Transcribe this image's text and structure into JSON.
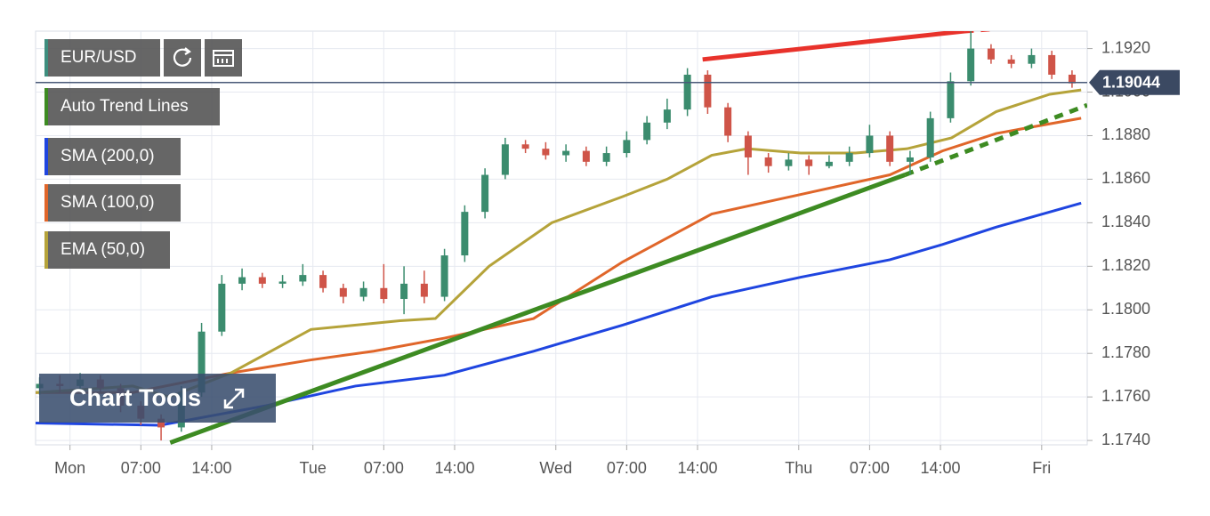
{
  "chart_data": {
    "type": "candlestick",
    "symbol": "EUR/USD",
    "xlim": [
      -3.4,
      100.5
    ],
    "ylim": [
      1.1738,
      1.1928
    ],
    "xticks": [
      {
        "value": 0,
        "label": "Mon"
      },
      {
        "value": 7,
        "label": "07:00"
      },
      {
        "value": 14,
        "label": "14:00"
      },
      {
        "value": 24,
        "label": "Tue"
      },
      {
        "value": 31,
        "label": "07:00"
      },
      {
        "value": 38,
        "label": "14:00"
      },
      {
        "value": 48,
        "label": "Wed"
      },
      {
        "value": 55,
        "label": "07:00"
      },
      {
        "value": 62,
        "label": "14:00"
      },
      {
        "value": 72,
        "label": "Thu"
      },
      {
        "value": 79,
        "label": "07:00"
      },
      {
        "value": 86,
        "label": "14:00"
      },
      {
        "value": 96,
        "label": "Fri"
      }
    ],
    "yticks": [
      {
        "value": 1.174,
        "label": "1.1740"
      },
      {
        "value": 1.176,
        "label": "1.1760"
      },
      {
        "value": 1.178,
        "label": "1.1780"
      },
      {
        "value": 1.18,
        "label": "1.1800"
      },
      {
        "value": 1.182,
        "label": "1.1820"
      },
      {
        "value": 1.184,
        "label": "1.1840"
      },
      {
        "value": 1.186,
        "label": "1.1860"
      },
      {
        "value": 1.188,
        "label": "1.1880"
      },
      {
        "value": 1.19,
        "label": "1.1900"
      },
      {
        "value": 1.192,
        "label": "1.1920"
      }
    ],
    "grid": true,
    "up_color": "#3b8c6e",
    "down_color": "#cf5448",
    "x": [
      -3,
      -1,
      1,
      3,
      5,
      7,
      9,
      11,
      13,
      15,
      17,
      19,
      21,
      23,
      25,
      27,
      29,
      31,
      33,
      35,
      37,
      39,
      41,
      43,
      45,
      47,
      49,
      51,
      53,
      55,
      57,
      59,
      61,
      63,
      65,
      67,
      69,
      71,
      73,
      75,
      77,
      79,
      81,
      83,
      85,
      87,
      89,
      91,
      93,
      95,
      97,
      99
    ],
    "open": [
      1.1764,
      1.1766,
      1.1765,
      1.1768,
      1.1764,
      1.1756,
      1.175,
      1.1746,
      1.1762,
      1.179,
      1.1812,
      1.1815,
      1.1812,
      1.1813,
      1.1816,
      1.181,
      1.1806,
      1.181,
      1.1805,
      1.1812,
      1.1806,
      1.1825,
      1.1845,
      1.1862,
      1.1876,
      1.1874,
      1.1871,
      1.1873,
      1.1868,
      1.1872,
      1.1878,
      1.1886,
      1.1892,
      1.1908,
      1.1893,
      1.188,
      1.187,
      1.1866,
      1.1869,
      1.1866,
      1.1868,
      1.1872,
      1.188,
      1.1868,
      1.187,
      1.1888,
      1.1905,
      1.192,
      1.1915,
      1.1913,
      1.1917,
      1.1908
    ],
    "high": [
      1.1769,
      1.177,
      1.1771,
      1.177,
      1.1766,
      1.1758,
      1.1752,
      1.1765,
      1.1794,
      1.1816,
      1.1819,
      1.1817,
      1.1816,
      1.1821,
      1.1818,
      1.1812,
      1.1813,
      1.1821,
      1.182,
      1.1818,
      1.1828,
      1.1848,
      1.1865,
      1.1879,
      1.1878,
      1.1877,
      1.1876,
      1.1875,
      1.1875,
      1.1882,
      1.1889,
      1.1897,
      1.1911,
      1.191,
      1.1895,
      1.1882,
      1.1872,
      1.1872,
      1.1871,
      1.1871,
      1.1875,
      1.1885,
      1.1882,
      1.1873,
      1.1891,
      1.1909,
      1.1928,
      1.1922,
      1.1917,
      1.192,
      1.1919,
      1.191
    ],
    "low": [
      1.1761,
      1.1762,
      1.1763,
      1.1762,
      1.1753,
      1.1747,
      1.174,
      1.1744,
      1.176,
      1.1788,
      1.1809,
      1.181,
      1.181,
      1.1811,
      1.1808,
      1.1803,
      1.1804,
      1.1803,
      1.1798,
      1.1803,
      1.1804,
      1.1822,
      1.1842,
      1.186,
      1.1872,
      1.1869,
      1.1868,
      1.1866,
      1.1866,
      1.187,
      1.1876,
      1.1883,
      1.1889,
      1.189,
      1.1877,
      1.1862,
      1.1863,
      1.1864,
      1.1862,
      1.1865,
      1.1866,
      1.187,
      1.1866,
      1.1862,
      1.1868,
      1.1886,
      1.1903,
      1.1913,
      1.1911,
      1.1911,
      1.1906,
      1.1902
    ],
    "close": [
      1.1766,
      1.1765,
      1.1768,
      1.1764,
      1.1756,
      1.175,
      1.1746,
      1.1762,
      1.179,
      1.1812,
      1.1815,
      1.1812,
      1.1813,
      1.1816,
      1.181,
      1.1806,
      1.181,
      1.1805,
      1.1812,
      1.1806,
      1.1825,
      1.1845,
      1.1862,
      1.1876,
      1.1874,
      1.1871,
      1.1873,
      1.1868,
      1.1872,
      1.1878,
      1.1886,
      1.1892,
      1.1908,
      1.1893,
      1.188,
      1.187,
      1.1866,
      1.1869,
      1.1866,
      1.1868,
      1.1872,
      1.188,
      1.1868,
      1.187,
      1.1888,
      1.1905,
      1.192,
      1.1915,
      1.1913,
      1.1917,
      1.1908,
      1.1904
    ],
    "series": [
      {
        "name": "SMA (200,0)",
        "color": "#1f45e0",
        "x": [
          -3.4,
          8.9,
          19.4,
          28.2,
          37.0,
          45.8,
          54.6,
          63.4,
          72.2,
          81.0,
          86.2,
          91.5,
          99.9
        ],
        "values": [
          1.1748,
          1.1747,
          1.1756,
          1.1765,
          1.177,
          1.1781,
          1.1793,
          1.1806,
          1.1815,
          1.1823,
          1.183,
          1.1838,
          1.1849
        ]
      },
      {
        "name": "SMA (100,0)",
        "color": "#e0662a",
        "x": [
          -3.4,
          6.2,
          15.9,
          23.8,
          30.0,
          37.0,
          45.8,
          54.6,
          63.4,
          72.2,
          81.0,
          86.2,
          91.5,
          99.9
        ],
        "values": [
          1.1762,
          1.1762,
          1.1771,
          1.1777,
          1.1781,
          1.1787,
          1.1796,
          1.1822,
          1.1844,
          1.1853,
          1.1862,
          1.1873,
          1.1881,
          1.1888
        ]
      },
      {
        "name": "EMA (50,0)",
        "color": "#b5a33a",
        "x": [
          -3.4,
          6.2,
          9.8,
          15.9,
          23.8,
          32.6,
          36.1,
          41.4,
          47.6,
          54.6,
          59.0,
          63.4,
          66.9,
          72.2,
          77.6,
          82.7,
          87.1,
          91.5,
          96.8,
          99.9
        ],
        "values": [
          1.1762,
          1.1765,
          1.176,
          1.1771,
          1.1791,
          1.1795,
          1.1796,
          1.182,
          1.184,
          1.1852,
          1.186,
          1.1871,
          1.1874,
          1.1872,
          1.1872,
          1.1874,
          1.1879,
          1.1891,
          1.1899,
          1.1901
        ]
      }
    ],
    "trend_lines": {
      "name": "Auto Trend Lines",
      "color": "#3d8b22",
      "lines": [
        {
          "color": "#3d8b22",
          "style": "solid",
          "x": [
            9.9,
            82.5
          ],
          "values": [
            1.1739,
            1.1862
          ]
        },
        {
          "color": "#3d8b22",
          "style": "dashed",
          "x": [
            82.5,
            100.5
          ],
          "values": [
            1.1862,
            1.1894
          ]
        },
        {
          "color": "#e8322b",
          "style": "solid",
          "x": [
            62.5,
            88.4
          ],
          "values": [
            1.1915,
            1.1928
          ]
        },
        {
          "color": "#e8322b",
          "style": "dashed",
          "x": [
            88.4,
            94.2
          ],
          "values": [
            1.1928,
            1.193
          ]
        }
      ]
    },
    "last_price": 1.19044,
    "tools_label": "Chart Tools"
  }
}
